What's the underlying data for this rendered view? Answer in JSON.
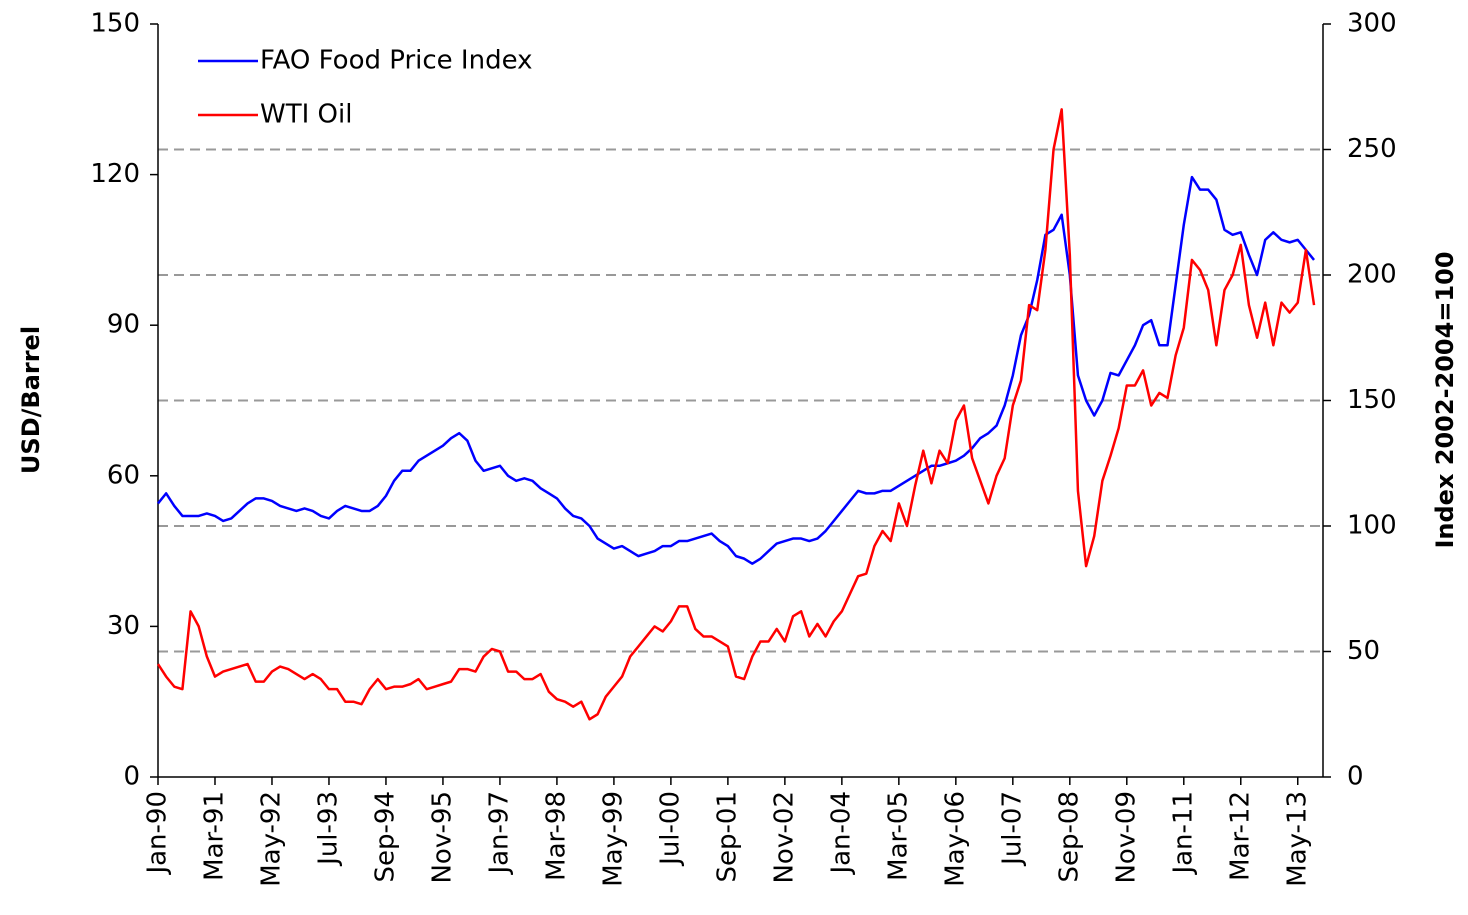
{
  "chart_data": {
    "type": "line",
    "y_label": "USD/Barrel",
    "y2_label": "Index 2002-2004=100",
    "legend": "upper left",
    "categories": [
      "Jan-90",
      null,
      null,
      null,
      null,
      null,
      null,
      "Mar-91",
      null,
      null,
      null,
      null,
      null,
      null,
      "May-92",
      null,
      null,
      null,
      null,
      null,
      null,
      "Jul-93",
      null,
      null,
      null,
      null,
      null,
      null,
      "Sep-94",
      null,
      null,
      null,
      null,
      null,
      null,
      "Nov-95",
      null,
      null,
      null,
      null,
      null,
      null,
      "Jan-97",
      null,
      null,
      null,
      null,
      null,
      null,
      "Mar-98",
      null,
      null,
      null,
      null,
      null,
      null,
      "May-99",
      null,
      null,
      null,
      null,
      null,
      null,
      "Jul-00",
      null,
      null,
      null,
      null,
      null,
      null,
      "Sep-01",
      null,
      null,
      null,
      null,
      null,
      null,
      "Nov-02",
      null,
      null,
      null,
      null,
      null,
      null,
      "Jan-04",
      null,
      null,
      null,
      null,
      null,
      null,
      "Mar-05",
      null,
      null,
      null,
      null,
      null,
      null,
      "May-06",
      null,
      null,
      null,
      null,
      null,
      null,
      "Jul-07",
      null,
      null,
      null,
      null,
      null,
      null,
      "Sep-08",
      null,
      null,
      null,
      null,
      null,
      null,
      "Nov-09",
      null,
      null,
      null,
      null,
      null,
      null,
      "Jan-11",
      null,
      null,
      null,
      null,
      null,
      null,
      "Mar-12",
      null,
      null,
      null,
      null,
      null,
      null,
      "May-13",
      null,
      null
    ],
    "series": [
      {
        "name": "FAO Food Price Index",
        "color": "#0000ff",
        "axis": "y2",
        "values": [
          109,
          113,
          108,
          104,
          104,
          104,
          105,
          104,
          102,
          103,
          106,
          109,
          111,
          111,
          110,
          108,
          107,
          106,
          107,
          106,
          104,
          103,
          106,
          108,
          107,
          106,
          106,
          108,
          112,
          118,
          122,
          122,
          126,
          128,
          130,
          132,
          135,
          137,
          134,
          126,
          122,
          123,
          124,
          120,
          118,
          119,
          118,
          115,
          113,
          111,
          107,
          104,
          103,
          100,
          95,
          93,
          91,
          92,
          90,
          88,
          89,
          90,
          92,
          92,
          94,
          94,
          95,
          96,
          97,
          94,
          92,
          88,
          87,
          85,
          87,
          90,
          93,
          94,
          95,
          95,
          94,
          95,
          98,
          102,
          106,
          110,
          114,
          113,
          113,
          114,
          114,
          116,
          118,
          120,
          122,
          124,
          124,
          125,
          126,
          128,
          131,
          135,
          137,
          140,
          148,
          160,
          176,
          184,
          198,
          216,
          218,
          224,
          200,
          160,
          150,
          144,
          150,
          161,
          160,
          166,
          172,
          180,
          182,
          172,
          172,
          196,
          220,
          239,
          234,
          234,
          230,
          218,
          216,
          217,
          208,
          200,
          214,
          217,
          214,
          213,
          214,
          210,
          206
        ]
      },
      {
        "name": "WTI Oil",
        "color": "#ff0000",
        "values": [
          22.5,
          20,
          18,
          17.5,
          33,
          30,
          24,
          20,
          21,
          21.5,
          22,
          22.5,
          19,
          19,
          21,
          22,
          21.5,
          20.5,
          19.5,
          20.5,
          19.5,
          17.5,
          17.5,
          15,
          15,
          14.5,
          17.5,
          19.5,
          17.5,
          18,
          18,
          18.5,
          19.5,
          17.5,
          18,
          18.5,
          19,
          21.5,
          21.5,
          21,
          24,
          25.5,
          25,
          21,
          21,
          19.5,
          19.5,
          20.5,
          17,
          15.5,
          15,
          14,
          15,
          11.5,
          12.5,
          16,
          18,
          20,
          24,
          26,
          28,
          30,
          29,
          31,
          34,
          34,
          29.5,
          28,
          28,
          27,
          26,
          20,
          19.5,
          24,
          27,
          27,
          29.5,
          27,
          32,
          33,
          28,
          30.5,
          28,
          31,
          33,
          36.5,
          40,
          40.5,
          46,
          49,
          47,
          54.5,
          50,
          58,
          65,
          58.5,
          65,
          62.5,
          71,
          74,
          63.5,
          59,
          54.5,
          60,
          63.5,
          74,
          79,
          94,
          93,
          105,
          125,
          133,
          104,
          57,
          42,
          48,
          59,
          64,
          69.5,
          78,
          78,
          81,
          74,
          76.5,
          75.5,
          84,
          89.5,
          103,
          101,
          97,
          86,
          97,
          100,
          106,
          94,
          87.5,
          94.5,
          86,
          94.5,
          92.5,
          94.5,
          105,
          94
        ]
      }
    ],
    "ylim": [
      0,
      150
    ],
    "yticks": [
      0,
      30,
      60,
      90,
      120,
      150
    ],
    "y2lim": [
      0,
      300
    ],
    "y2ticks": [
      0,
      50,
      100,
      150,
      200,
      250,
      300
    ],
    "grid": true
  }
}
